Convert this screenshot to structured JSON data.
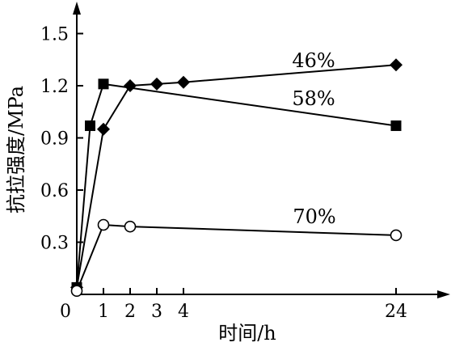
{
  "chart_data": {
    "type": "line",
    "xlabel": "时间/h",
    "ylabel": "抗拉强度/MPa",
    "x_ticks": [
      0,
      1,
      2,
      3,
      4,
      24
    ],
    "y_ticks": [
      "0.3",
      "0.6",
      "0.9",
      "1.2",
      "1.5"
    ],
    "ylim": [
      0,
      1.65
    ],
    "xaxis": "broken (0-4 h expanded, then 24 h)",
    "grid": false,
    "legend": "none (series labeled inline)",
    "series": [
      {
        "name": "46%",
        "marker": "diamond-filled",
        "x": [
          0,
          1,
          2,
          3,
          4,
          24
        ],
        "y": [
          0.04,
          0.95,
          1.2,
          1.21,
          1.22,
          1.32
        ]
      },
      {
        "name": "58%",
        "marker": "square-filled",
        "x": [
          0,
          0.5,
          1,
          24
        ],
        "y": [
          0.04,
          0.97,
          1.21,
          0.97
        ]
      },
      {
        "name": "70%",
        "marker": "circle-open",
        "x": [
          0,
          1,
          2,
          24
        ],
        "y": [
          0.02,
          0.4,
          0.39,
          0.34
        ]
      }
    ]
  }
}
